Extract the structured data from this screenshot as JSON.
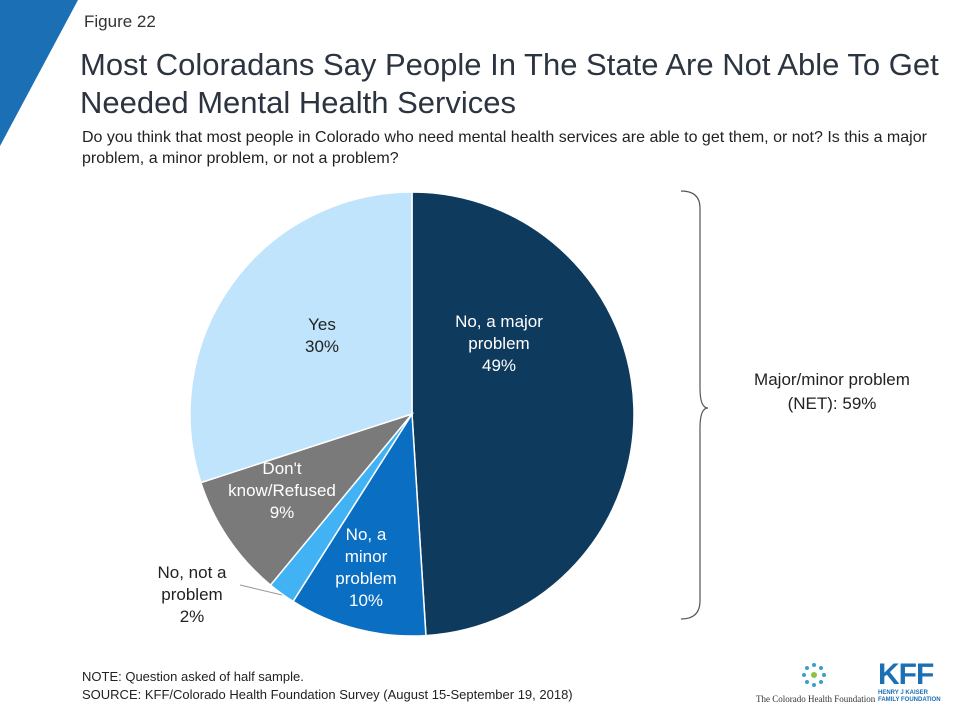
{
  "figure_label": "Figure 22",
  "title": "Most Coloradans Say People In The State Are Not Able To Get Needed Mental Health Services",
  "subtitle": "Do you think that most people in Colorado who need mental health services are able to get them, or not? Is this a major problem, a minor problem, or not a problem?",
  "chart_data": {
    "type": "pie",
    "start_angle_deg": 0,
    "direction": "clockwise",
    "slices": [
      {
        "label": "No, a major problem",
        "value": 49,
        "value_text": "49%",
        "color": "#0e3a5e",
        "label_color": "#ffffff",
        "label_lines": [
          "No, a major",
          "problem",
          "49%"
        ]
      },
      {
        "label": "No, a minor problem",
        "value": 10,
        "value_text": "10%",
        "color": "#0a6fc2",
        "label_color": "#ffffff",
        "label_lines": [
          "No, a",
          "minor",
          "problem",
          "10%"
        ]
      },
      {
        "label": "No, not a problem",
        "value": 2,
        "value_text": "2%",
        "color": "#41b2f4",
        "label_color": "#222222",
        "label_lines": [
          "No, not a",
          "problem",
          "2%"
        ]
      },
      {
        "label": "Don't know/Refused",
        "value": 9,
        "value_text": "9%",
        "color": "#7a7a7a",
        "label_color": "#ffffff",
        "label_lines": [
          "Don't",
          "know/Refused",
          "9%"
        ]
      },
      {
        "label": "Yes",
        "value": 30,
        "value_text": "30%",
        "color": "#bfe4fb",
        "label_color": "#222222",
        "label_lines": [
          "Yes",
          "30%"
        ]
      }
    ]
  },
  "net_bracket": {
    "line1": "Major/minor problem",
    "line2": "(NET):  59%"
  },
  "footer": {
    "note": "NOTE: Question asked of half sample.",
    "source": "SOURCE: KFF/Colorado Health Foundation Survey (August 15-September 19, 2018)"
  },
  "logos": {
    "chf": "The Colorado Health Foundation",
    "kff_mark": "KFF",
    "kff_sub1": "HENRY J KAISER",
    "kff_sub2": "FAMILY FOUNDATION"
  }
}
